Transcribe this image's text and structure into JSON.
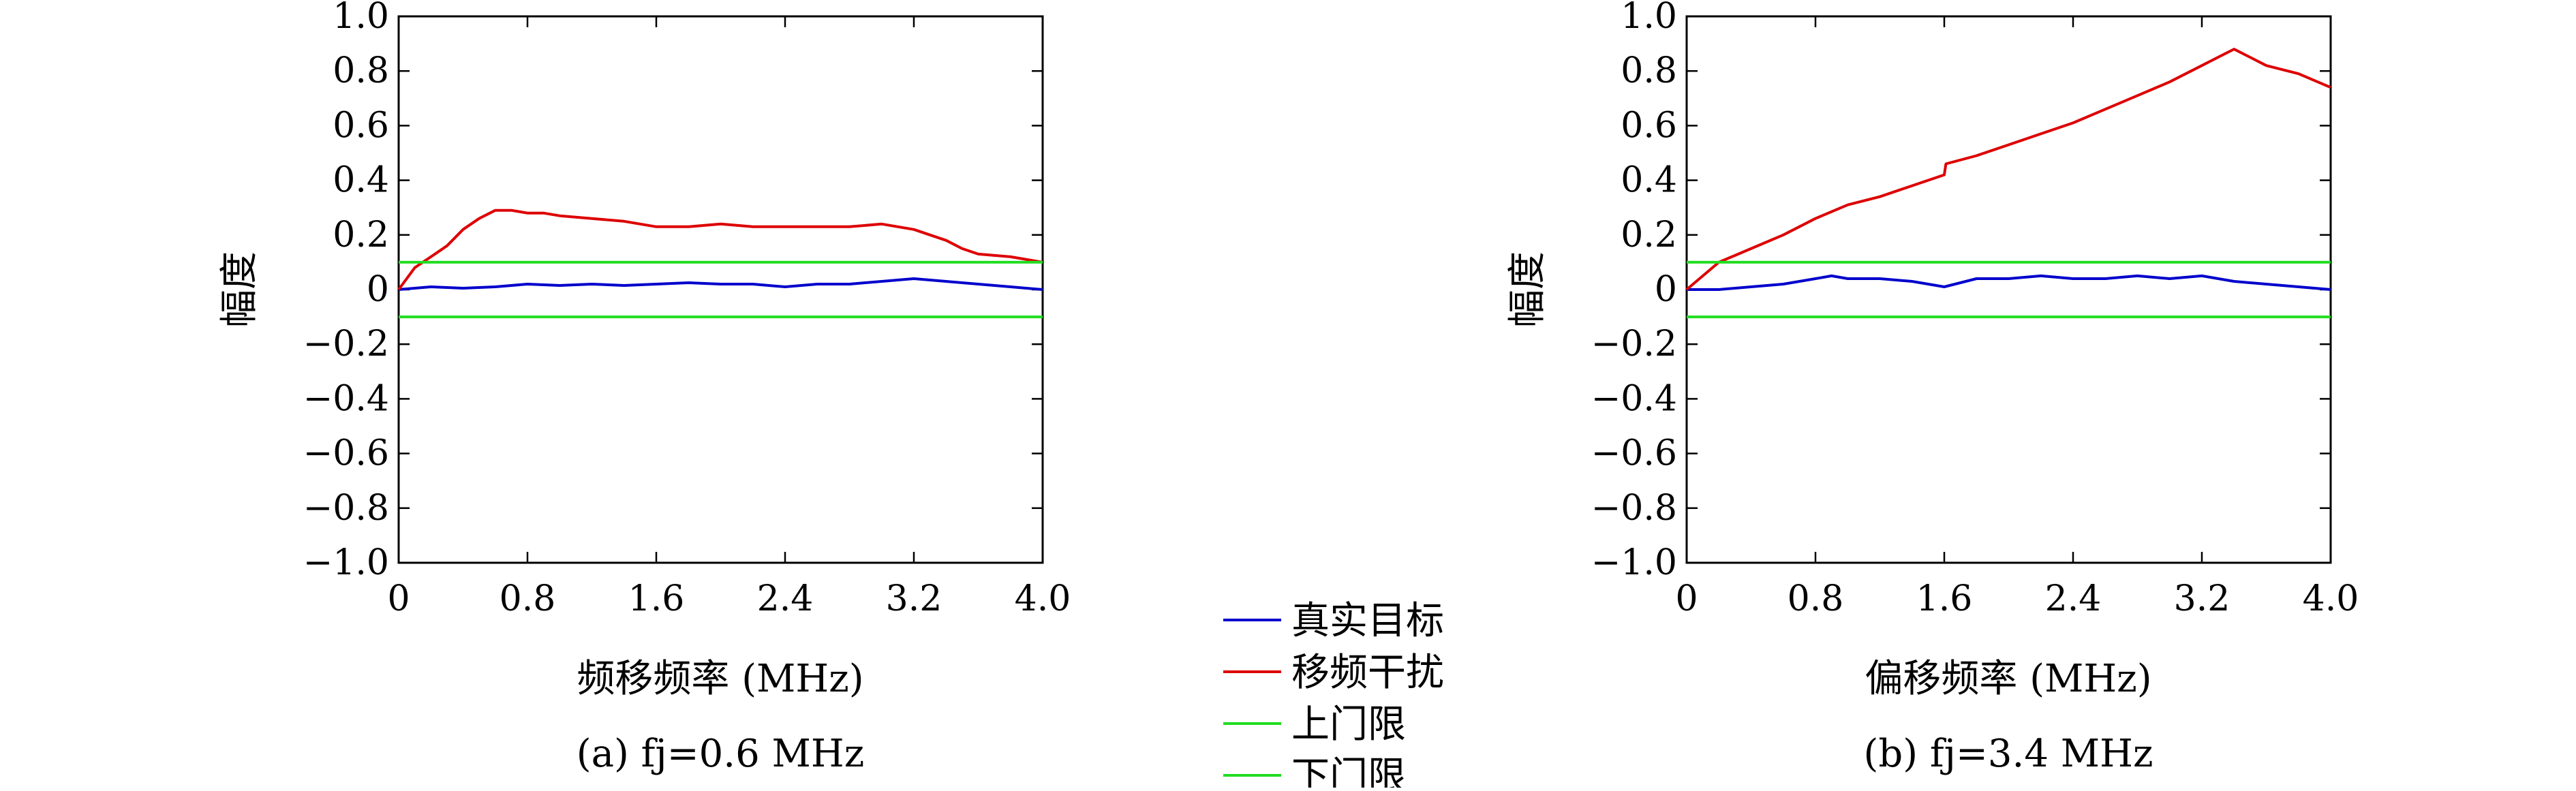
{
  "chart_data": [
    {
      "type": "line",
      "caption": "(a) fj=0.6 MHz",
      "xlabel": "频移频率 (MHz)",
      "ylabel": "幅度",
      "xlim": [
        0,
        4.0
      ],
      "ylim": [
        -1.0,
        1.0
      ],
      "xticks": [
        "0",
        "0.8",
        "1.6",
        "2.4",
        "3.2",
        "4.0"
      ],
      "yticks": [
        "1.0",
        "0.8",
        "0.6",
        "0.4",
        "0.2",
        "0",
        "−0.2",
        "−0.4",
        "−0.6",
        "−0.8",
        "−1.0"
      ],
      "series": [
        {
          "name": "真实目标",
          "color": "#0000cc",
          "x": [
            0,
            0.2,
            0.4,
            0.6,
            0.8,
            1.0,
            1.2,
            1.4,
            1.6,
            1.8,
            2.0,
            2.2,
            2.4,
            2.6,
            2.8,
            3.0,
            3.2,
            3.4,
            3.6,
            3.8,
            4.0
          ],
          "y": [
            0,
            0.01,
            0.005,
            0.01,
            0.02,
            0.015,
            0.02,
            0.015,
            0.02,
            0.025,
            0.02,
            0.02,
            0.01,
            0.02,
            0.02,
            0.03,
            0.04,
            0.03,
            0.02,
            0.01,
            0.0
          ]
        },
        {
          "name": "移频干扰",
          "color": "#dd0000",
          "x": [
            0,
            0.1,
            0.2,
            0.3,
            0.4,
            0.5,
            0.6,
            0.7,
            0.8,
            0.9,
            1.0,
            1.2,
            1.4,
            1.6,
            1.8,
            2.0,
            2.2,
            2.4,
            2.6,
            2.8,
            3.0,
            3.2,
            3.4,
            3.5,
            3.6,
            3.8,
            3.9,
            4.0
          ],
          "y": [
            0,
            0.08,
            0.12,
            0.16,
            0.22,
            0.26,
            0.29,
            0.29,
            0.28,
            0.28,
            0.27,
            0.26,
            0.25,
            0.23,
            0.23,
            0.24,
            0.23,
            0.23,
            0.23,
            0.23,
            0.24,
            0.22,
            0.18,
            0.15,
            0.13,
            0.12,
            0.11,
            0.1
          ]
        },
        {
          "name": "上门限",
          "color": "#22dd22",
          "x": [
            0,
            4.0
          ],
          "y": [
            0.1,
            0.1
          ]
        },
        {
          "name": "下门限",
          "color": "#22dd22",
          "x": [
            0,
            4.0
          ],
          "y": [
            -0.1,
            -0.1
          ]
        }
      ]
    },
    {
      "type": "line",
      "caption": "(b) fj=3.4 MHz",
      "xlabel": "偏移频率 (MHz)",
      "ylabel": "幅度",
      "xlim": [
        0,
        4.0
      ],
      "ylim": [
        -1.0,
        1.0
      ],
      "xticks": [
        "0",
        "0.8",
        "1.6",
        "2.4",
        "3.2",
        "4.0"
      ],
      "yticks": [
        "1.0",
        "0.8",
        "0.6",
        "0.4",
        "0.2",
        "0",
        "−0.2",
        "−0.4",
        "−0.6",
        "−0.8",
        "−1.0"
      ],
      "series": [
        {
          "name": "真实目标",
          "color": "#0000cc",
          "x": [
            0,
            0.2,
            0.4,
            0.6,
            0.8,
            0.9,
            1.0,
            1.2,
            1.4,
            1.6,
            1.8,
            2.0,
            2.2,
            2.4,
            2.6,
            2.8,
            3.0,
            3.2,
            3.4,
            3.6,
            3.8,
            4.0
          ],
          "y": [
            0,
            0.0,
            0.01,
            0.02,
            0.04,
            0.05,
            0.04,
            0.04,
            0.03,
            0.01,
            0.04,
            0.04,
            0.05,
            0.04,
            0.04,
            0.05,
            0.04,
            0.05,
            0.03,
            0.02,
            0.01,
            0.0
          ]
        },
        {
          "name": "移频干扰",
          "color": "#dd0000",
          "x": [
            0,
            0.2,
            0.4,
            0.6,
            0.8,
            1.0,
            1.2,
            1.4,
            1.6,
            1.61,
            1.8,
            2.0,
            2.2,
            2.4,
            2.6,
            2.8,
            3.0,
            3.2,
            3.3,
            3.4,
            3.5,
            3.6,
            3.8,
            4.0
          ],
          "y": [
            0,
            0.1,
            0.15,
            0.2,
            0.26,
            0.31,
            0.34,
            0.38,
            0.42,
            0.46,
            0.49,
            0.53,
            0.57,
            0.61,
            0.66,
            0.71,
            0.76,
            0.82,
            0.85,
            0.88,
            0.85,
            0.82,
            0.79,
            0.74
          ]
        },
        {
          "name": "上门限",
          "color": "#22dd22",
          "x": [
            0,
            4.0
          ],
          "y": [
            0.1,
            0.1
          ]
        },
        {
          "name": "下门限",
          "color": "#22dd22",
          "x": [
            0,
            4.0
          ],
          "y": [
            -0.1,
            -0.1
          ]
        }
      ]
    }
  ],
  "legend": {
    "placement": "center-bottom",
    "items": [
      {
        "label": "真实目标",
        "color": "#0000cc"
      },
      {
        "label": "移频干扰",
        "color": "#dd0000"
      },
      {
        "label": "上门限",
        "color": "#22dd22"
      },
      {
        "label": "下门限",
        "color": "#22dd22"
      }
    ]
  }
}
